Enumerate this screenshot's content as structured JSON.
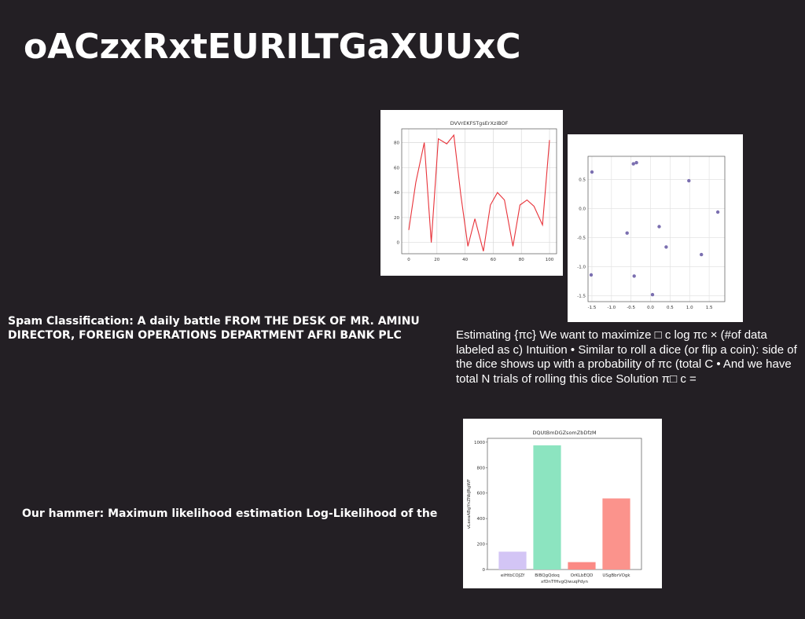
{
  "slide": {
    "title": "oACzxRxtEURILTGaXUUxC",
    "spam_text": "Spam Classification: A daily battle FROM THE DESK OF MR. AMINU DIRECTOR, FOREIGN OPERATIONS DEPARTMENT AFRI BANK PLC",
    "hammer_text": "Our hammer: Maximum likelihood estimation Log-Likelihood of the",
    "estimating_text": "Estimating {πc} We want to maximize □ c log πc × (#of data labeled as c) Intuition • Similar to roll a dice (or flip a coin): side of the dice shows up with a probability of πc (total C • And we have total N trials of rolling this dice Solution π□ c ="
  },
  "chart_data": [
    {
      "type": "line",
      "title": "DVVrEKFSTgsErXziBOF",
      "xlabel": "",
      "ylabel": "",
      "xlim": [
        -5,
        105
      ],
      "ylim": [
        -9,
        91
      ],
      "xticks": [
        0,
        20,
        40,
        60,
        80,
        100
      ],
      "yticks": [
        0,
        20,
        40,
        60,
        80
      ],
      "grid": true,
      "color": "#e8333a",
      "series": [
        {
          "x": [
            0,
            5,
            11,
            16,
            21,
            27,
            32,
            37,
            42,
            47,
            53,
            58,
            63,
            68,
            74,
            79,
            84,
            89,
            95,
            100
          ],
          "values": [
            10,
            48,
            80,
            0,
            83,
            79,
            86,
            38,
            -3,
            19,
            -7,
            30,
            40,
            34,
            -3,
            30,
            34,
            29,
            14,
            82
          ]
        }
      ]
    },
    {
      "type": "scatter",
      "title": "",
      "xlabel": "",
      "ylabel": "",
      "xlim": [
        -1.6,
        1.9
      ],
      "ylim": [
        -1.6,
        0.9
      ],
      "xticks": [
        -1.5,
        -1.0,
        -0.5,
        0.0,
        0.5,
        1.0,
        1.5
      ],
      "xtick_labels": [
        "-1.5",
        "-1.0",
        "-0.5",
        "0.0",
        "0.5",
        "1.0",
        "1.5"
      ],
      "yticks": [
        0.5,
        0.0,
        -0.5,
        -1.0,
        -1.5
      ],
      "ytick_labels": [
        "0.5",
        "0.0",
        "-0.5",
        "-1.0",
        "-1.5"
      ],
      "grid": true,
      "color": "#7b6fb0",
      "series": [
        {
          "x": [
            -1.5,
            -1.52,
            -0.44,
            -0.36,
            -0.6,
            -0.42,
            0.05,
            0.22,
            0.4,
            0.98,
            1.3,
            1.72
          ],
          "y": [
            0.63,
            -1.14,
            0.77,
            0.79,
            -0.42,
            -1.16,
            -1.48,
            -0.31,
            -0.66,
            0.48,
            -0.79,
            -0.06
          ]
        }
      ]
    },
    {
      "type": "bar",
      "title": "DQUtBmDGZsomZbDfzM",
      "xlabel": "xfDnTfHvgQiwuqPdyn",
      "ylabel": "vLaeaABgYnZNbJRgWF",
      "categories": [
        "eiHtbCOJZf",
        "BlBQgQdoq",
        "OrKLbEQD",
        "USgBbrVOgk"
      ],
      "values": [
        140,
        975,
        58,
        558
      ],
      "colors": [
        "#d3c5f5",
        "#8ce4c0",
        "#fb8a85",
        "#fb938c"
      ],
      "ylim": [
        0,
        1030
      ],
      "yticks": [
        0,
        200,
        400,
        600,
        800,
        1000
      ],
      "grid": false
    }
  ]
}
